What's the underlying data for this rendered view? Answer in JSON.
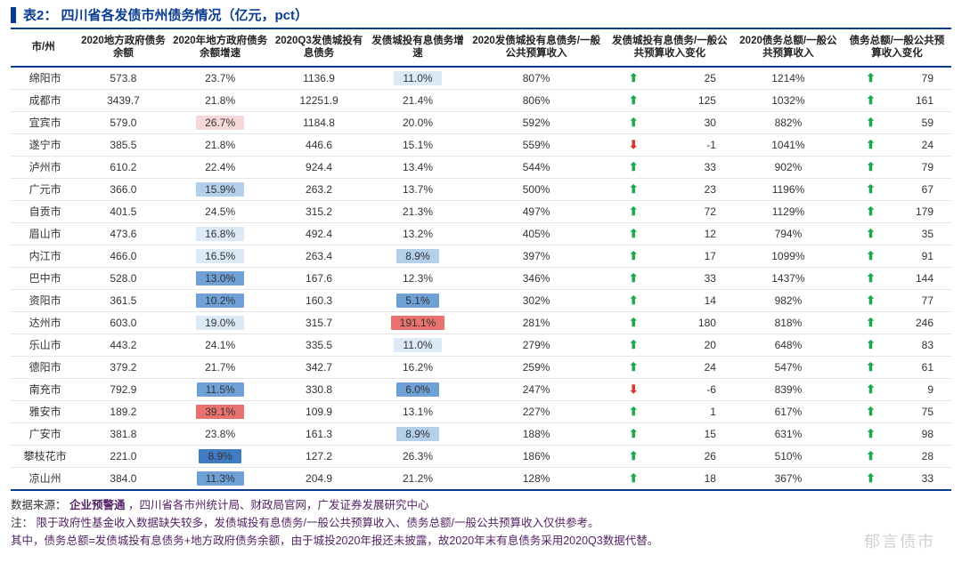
{
  "title": "表2：  四川省各发债市州债务情况（亿元，pct）",
  "columns": [
    "市/州",
    "2020地方政府债务余额",
    "2020年地方政府债务余额增速",
    "2020Q3发债城投有息债务",
    "发债城投有息债务增速",
    "2020发债城投有息债务/一般公共预算收入",
    "发债城投有息债务/一般公共预算收入变化",
    "2020债务总额/一般公共预算收入",
    "债务总额/一般公共预算收入变化"
  ],
  "heat_colors": {
    "blue4": "#3f7cc4",
    "blue3": "#6fa1d6",
    "blue2": "#b4cfea",
    "blue1": "#dce9f6",
    "none": "transparent",
    "red1": "#f7d8d8",
    "red2": "#f2b0ae",
    "red3": "#e9726f"
  },
  "rows": [
    {
      "city": "绵阳市",
      "c1": "573.8",
      "c2": "23.7%",
      "c2h": "none",
      "c3": "1136.9",
      "c4": "11.0%",
      "c4h": "blue1",
      "c5": "807%",
      "c6a": "up",
      "c6v": "25",
      "c7": "1214%",
      "c8a": "up",
      "c8v": "79"
    },
    {
      "city": "成都市",
      "c1": "3439.7",
      "c2": "21.8%",
      "c2h": "none",
      "c3": "12251.9",
      "c4": "21.4%",
      "c4h": "none",
      "c5": "806%",
      "c6a": "up",
      "c6v": "125",
      "c7": "1032%",
      "c8a": "up",
      "c8v": "161"
    },
    {
      "city": "宜宾市",
      "c1": "579.0",
      "c2": "26.7%",
      "c2h": "red1",
      "c3": "1184.8",
      "c4": "20.0%",
      "c4h": "none",
      "c5": "592%",
      "c6a": "up",
      "c6v": "30",
      "c7": "882%",
      "c8a": "up",
      "c8v": "59"
    },
    {
      "city": "遂宁市",
      "c1": "385.5",
      "c2": "21.8%",
      "c2h": "none",
      "c3": "446.6",
      "c4": "15.1%",
      "c4h": "none",
      "c5": "559%",
      "c6a": "down",
      "c6v": "-1",
      "c7": "1041%",
      "c8a": "up",
      "c8v": "24"
    },
    {
      "city": "泸州市",
      "c1": "610.2",
      "c2": "22.4%",
      "c2h": "none",
      "c3": "924.4",
      "c4": "13.4%",
      "c4h": "none",
      "c5": "544%",
      "c6a": "up",
      "c6v": "33",
      "c7": "902%",
      "c8a": "up",
      "c8v": "79"
    },
    {
      "city": "广元市",
      "c1": "366.0",
      "c2": "15.9%",
      "c2h": "blue2",
      "c3": "263.2",
      "c4": "13.7%",
      "c4h": "none",
      "c5": "500%",
      "c6a": "up",
      "c6v": "23",
      "c7": "1196%",
      "c8a": "up",
      "c8v": "67"
    },
    {
      "city": "自贡市",
      "c1": "401.5",
      "c2": "24.5%",
      "c2h": "none",
      "c3": "315.2",
      "c4": "21.3%",
      "c4h": "none",
      "c5": "497%",
      "c6a": "up",
      "c6v": "72",
      "c7": "1129%",
      "c8a": "up",
      "c8v": "179"
    },
    {
      "city": "眉山市",
      "c1": "473.6",
      "c2": "16.8%",
      "c2h": "blue1",
      "c3": "492.4",
      "c4": "13.2%",
      "c4h": "none",
      "c5": "405%",
      "c6a": "up",
      "c6v": "12",
      "c7": "794%",
      "c8a": "up",
      "c8v": "35"
    },
    {
      "city": "内江市",
      "c1": "466.0",
      "c2": "16.5%",
      "c2h": "blue1",
      "c3": "263.4",
      "c4": "8.9%",
      "c4h": "blue2",
      "c5": "397%",
      "c6a": "up",
      "c6v": "17",
      "c7": "1099%",
      "c8a": "up",
      "c8v": "91"
    },
    {
      "city": "巴中市",
      "c1": "528.0",
      "c2": "13.0%",
      "c2h": "blue3",
      "c3": "167.6",
      "c4": "12.3%",
      "c4h": "none",
      "c5": "346%",
      "c6a": "up",
      "c6v": "33",
      "c7": "1437%",
      "c8a": "up",
      "c8v": "144"
    },
    {
      "city": "资阳市",
      "c1": "361.5",
      "c2": "10.2%",
      "c2h": "blue3",
      "c3": "160.3",
      "c4": "5.1%",
      "c4h": "blue3",
      "c5": "302%",
      "c6a": "up",
      "c6v": "14",
      "c7": "982%",
      "c8a": "up",
      "c8v": "77"
    },
    {
      "city": "达州市",
      "c1": "603.0",
      "c2": "19.0%",
      "c2h": "blue1",
      "c3": "315.7",
      "c4": "191.1%",
      "c4h": "red3",
      "c5": "281%",
      "c6a": "up",
      "c6v": "180",
      "c7": "818%",
      "c8a": "up",
      "c8v": "246"
    },
    {
      "city": "乐山市",
      "c1": "443.2",
      "c2": "24.1%",
      "c2h": "none",
      "c3": "335.5",
      "c4": "11.0%",
      "c4h": "blue1",
      "c5": "279%",
      "c6a": "up",
      "c6v": "20",
      "c7": "648%",
      "c8a": "up",
      "c8v": "83"
    },
    {
      "city": "德阳市",
      "c1": "379.2",
      "c2": "21.7%",
      "c2h": "none",
      "c3": "342.7",
      "c4": "16.2%",
      "c4h": "none",
      "c5": "259%",
      "c6a": "up",
      "c6v": "24",
      "c7": "547%",
      "c8a": "up",
      "c8v": "61"
    },
    {
      "city": "南充市",
      "c1": "792.9",
      "c2": "11.5%",
      "c2h": "blue3",
      "c3": "330.8",
      "c4": "6.0%",
      "c4h": "blue3",
      "c5": "247%",
      "c6a": "down",
      "c6v": "-6",
      "c7": "839%",
      "c8a": "up",
      "c8v": "9"
    },
    {
      "city": "雅安市",
      "c1": "189.2",
      "c2": "39.1%",
      "c2h": "red3",
      "c3": "109.9",
      "c4": "13.1%",
      "c4h": "none",
      "c5": "227%",
      "c6a": "up",
      "c6v": "1",
      "c7": "617%",
      "c8a": "up",
      "c8v": "75"
    },
    {
      "city": "广安市",
      "c1": "381.8",
      "c2": "23.8%",
      "c2h": "none",
      "c3": "161.3",
      "c4": "8.9%",
      "c4h": "blue2",
      "c5": "188%",
      "c6a": "up",
      "c6v": "15",
      "c7": "631%",
      "c8a": "up",
      "c8v": "98"
    },
    {
      "city": "攀枝花市",
      "c1": "221.0",
      "c2": "8.9%",
      "c2h": "blue4",
      "c3": "127.2",
      "c4": "26.3%",
      "c4h": "none",
      "c5": "186%",
      "c6a": "up",
      "c6v": "26",
      "c7": "510%",
      "c8a": "up",
      "c8v": "28"
    },
    {
      "city": "凉山州",
      "c1": "384.0",
      "c2": "11.3%",
      "c2h": "blue3",
      "c3": "204.9",
      "c4": "21.2%",
      "c4h": "none",
      "c5": "128%",
      "c6a": "up",
      "c6v": "18",
      "c7": "367%",
      "c8a": "up",
      "c8v": "33"
    }
  ],
  "notes": {
    "source_label": "数据来源：",
    "source_bold": "企业预警通",
    "source_rest": "，四川省各市州统计局、财政局官网，广发证券发展研究中心",
    "note_label": "注：",
    "note_line1": "限于政府性基金收入数据缺失较多，发债城投有息债务/一般公共预算收入、债务总额/一般公共预算收入仅供参考。",
    "note_line2": "其中，债务总额=发债城投有息债务+地方政府债务余额，由于城投2020年报还未披露，故2020年末有息债务采用2020Q3数据代替。"
  },
  "watermark": "郁言债市"
}
